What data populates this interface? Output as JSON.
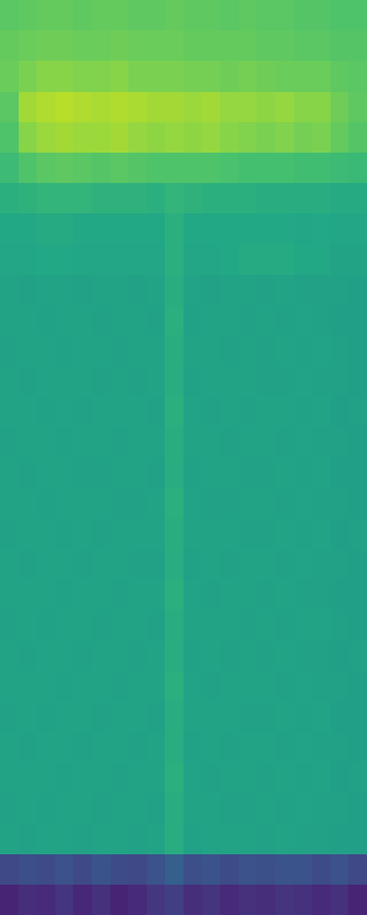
{
  "chart_data": {
    "type": "heatmap",
    "color": "viridis",
    "tick_labels": false,
    "color_range": [
      0,
      1
    ],
    "cells": [
      [
        0.74,
        0.75,
        0.76,
        0.76,
        0.75,
        0.76,
        0.76,
        0.75,
        0.75,
        0.76,
        0.75,
        0.75,
        0.74,
        0.75,
        0.74,
        0.74,
        0.73,
        0.73,
        0.72,
        0.72
      ],
      [
        0.76,
        0.77,
        0.78,
        0.78,
        0.77,
        0.77,
        0.78,
        0.77,
        0.77,
        0.77,
        0.76,
        0.76,
        0.76,
        0.76,
        0.75,
        0.75,
        0.74,
        0.74,
        0.73,
        0.73
      ],
      [
        0.77,
        0.8,
        0.82,
        0.82,
        0.81,
        0.81,
        0.82,
        0.8,
        0.8,
        0.8,
        0.79,
        0.79,
        0.78,
        0.79,
        0.78,
        0.77,
        0.77,
        0.77,
        0.75,
        0.74
      ],
      [
        0.74,
        0.86,
        0.88,
        0.89,
        0.88,
        0.87,
        0.88,
        0.87,
        0.86,
        0.86,
        0.85,
        0.86,
        0.84,
        0.84,
        0.83,
        0.84,
        0.82,
        0.82,
        0.78,
        0.75
      ],
      [
        0.72,
        0.82,
        0.85,
        0.86,
        0.85,
        0.85,
        0.86,
        0.84,
        0.83,
        0.84,
        0.83,
        0.84,
        0.82,
        0.81,
        0.8,
        0.81,
        0.79,
        0.8,
        0.76,
        0.73
      ],
      [
        0.68,
        0.72,
        0.74,
        0.75,
        0.74,
        0.73,
        0.74,
        0.73,
        0.72,
        0.72,
        0.72,
        0.72,
        0.71,
        0.7,
        0.7,
        0.7,
        0.69,
        0.69,
        0.68,
        0.67
      ],
      [
        0.63,
        0.64,
        0.65,
        0.65,
        0.65,
        0.64,
        0.64,
        0.64,
        0.63,
        0.65,
        0.64,
        0.63,
        0.63,
        0.63,
        0.62,
        0.62,
        0.62,
        0.62,
        0.61,
        0.61
      ],
      [
        0.6,
        0.6,
        0.61,
        0.61,
        0.6,
        0.6,
        0.6,
        0.6,
        0.6,
        0.63,
        0.6,
        0.6,
        0.6,
        0.6,
        0.6,
        0.6,
        0.59,
        0.6,
        0.59,
        0.59
      ],
      [
        0.59,
        0.59,
        0.6,
        0.6,
        0.59,
        0.59,
        0.59,
        0.59,
        0.59,
        0.63,
        0.59,
        0.59,
        0.6,
        0.61,
        0.61,
        0.61,
        0.6,
        0.6,
        0.58,
        0.58
      ],
      [
        0.58,
        0.57,
        0.58,
        0.58,
        0.57,
        0.58,
        0.58,
        0.57,
        0.58,
        0.62,
        0.58,
        0.57,
        0.58,
        0.58,
        0.57,
        0.58,
        0.57,
        0.57,
        0.57,
        0.56
      ],
      [
        0.58,
        0.58,
        0.57,
        0.58,
        0.58,
        0.57,
        0.58,
        0.58,
        0.57,
        0.63,
        0.57,
        0.58,
        0.58,
        0.57,
        0.58,
        0.57,
        0.58,
        0.57,
        0.56,
        0.56
      ],
      [
        0.57,
        0.58,
        0.58,
        0.57,
        0.58,
        0.58,
        0.57,
        0.58,
        0.58,
        0.62,
        0.58,
        0.58,
        0.57,
        0.58,
        0.57,
        0.58,
        0.57,
        0.58,
        0.57,
        0.56
      ],
      [
        0.58,
        0.57,
        0.58,
        0.58,
        0.58,
        0.57,
        0.58,
        0.57,
        0.58,
        0.62,
        0.57,
        0.58,
        0.58,
        0.58,
        0.57,
        0.57,
        0.58,
        0.57,
        0.57,
        0.56
      ],
      [
        0.58,
        0.58,
        0.57,
        0.58,
        0.57,
        0.58,
        0.58,
        0.58,
        0.57,
        0.63,
        0.58,
        0.57,
        0.58,
        0.57,
        0.58,
        0.58,
        0.57,
        0.58,
        0.56,
        0.57
      ],
      [
        0.57,
        0.58,
        0.58,
        0.57,
        0.58,
        0.58,
        0.57,
        0.58,
        0.58,
        0.62,
        0.58,
        0.58,
        0.57,
        0.58,
        0.58,
        0.57,
        0.58,
        0.57,
        0.57,
        0.56
      ],
      [
        0.58,
        0.57,
        0.58,
        0.58,
        0.57,
        0.57,
        0.58,
        0.58,
        0.57,
        0.62,
        0.57,
        0.58,
        0.58,
        0.57,
        0.57,
        0.58,
        0.57,
        0.58,
        0.56,
        0.56
      ],
      [
        0.58,
        0.58,
        0.57,
        0.58,
        0.58,
        0.58,
        0.57,
        0.57,
        0.58,
        0.63,
        0.58,
        0.57,
        0.57,
        0.58,
        0.58,
        0.57,
        0.58,
        0.57,
        0.57,
        0.56
      ],
      [
        0.57,
        0.58,
        0.58,
        0.57,
        0.58,
        0.57,
        0.58,
        0.58,
        0.58,
        0.62,
        0.58,
        0.58,
        0.58,
        0.57,
        0.57,
        0.58,
        0.57,
        0.58,
        0.56,
        0.57
      ],
      [
        0.58,
        0.57,
        0.58,
        0.58,
        0.57,
        0.58,
        0.58,
        0.57,
        0.57,
        0.62,
        0.57,
        0.58,
        0.57,
        0.58,
        0.58,
        0.57,
        0.58,
        0.57,
        0.57,
        0.56
      ],
      [
        0.58,
        0.58,
        0.58,
        0.57,
        0.58,
        0.58,
        0.57,
        0.58,
        0.58,
        0.63,
        0.58,
        0.57,
        0.58,
        0.58,
        0.57,
        0.58,
        0.57,
        0.57,
        0.56,
        0.56
      ],
      [
        0.57,
        0.58,
        0.57,
        0.58,
        0.58,
        0.57,
        0.58,
        0.58,
        0.57,
        0.62,
        0.58,
        0.58,
        0.58,
        0.57,
        0.58,
        0.57,
        0.58,
        0.58,
        0.57,
        0.56
      ],
      [
        0.58,
        0.57,
        0.58,
        0.58,
        0.57,
        0.58,
        0.58,
        0.57,
        0.58,
        0.62,
        0.57,
        0.58,
        0.57,
        0.58,
        0.57,
        0.58,
        0.57,
        0.57,
        0.56,
        0.57
      ],
      [
        0.58,
        0.58,
        0.58,
        0.57,
        0.58,
        0.58,
        0.57,
        0.58,
        0.58,
        0.63,
        0.58,
        0.57,
        0.58,
        0.58,
        0.58,
        0.57,
        0.58,
        0.57,
        0.57,
        0.56
      ],
      [
        0.57,
        0.58,
        0.57,
        0.58,
        0.58,
        0.57,
        0.58,
        0.58,
        0.57,
        0.62,
        0.58,
        0.58,
        0.58,
        0.57,
        0.57,
        0.58,
        0.57,
        0.58,
        0.56,
        0.56
      ],
      [
        0.58,
        0.57,
        0.58,
        0.58,
        0.57,
        0.58,
        0.58,
        0.57,
        0.58,
        0.62,
        0.57,
        0.58,
        0.57,
        0.58,
        0.58,
        0.57,
        0.58,
        0.57,
        0.57,
        0.56
      ],
      [
        0.58,
        0.58,
        0.58,
        0.57,
        0.58,
        0.58,
        0.57,
        0.58,
        0.58,
        0.63,
        0.58,
        0.57,
        0.58,
        0.58,
        0.57,
        0.58,
        0.57,
        0.58,
        0.56,
        0.57
      ],
      [
        0.57,
        0.58,
        0.57,
        0.58,
        0.58,
        0.57,
        0.58,
        0.58,
        0.57,
        0.62,
        0.58,
        0.58,
        0.57,
        0.57,
        0.58,
        0.57,
        0.58,
        0.57,
        0.57,
        0.56
      ],
      [
        0.58,
        0.57,
        0.58,
        0.58,
        0.57,
        0.58,
        0.58,
        0.57,
        0.58,
        0.62,
        0.57,
        0.58,
        0.58,
        0.58,
        0.57,
        0.58,
        0.57,
        0.57,
        0.56,
        0.56
      ],
      [
        0.22,
        0.24,
        0.23,
        0.25,
        0.22,
        0.26,
        0.23,
        0.22,
        0.25,
        0.3,
        0.24,
        0.26,
        0.23,
        0.25,
        0.24,
        0.26,
        0.25,
        0.23,
        0.25,
        0.22
      ],
      [
        0.1,
        0.13,
        0.12,
        0.15,
        0.11,
        0.14,
        0.1,
        0.12,
        0.16,
        0.18,
        0.13,
        0.15,
        0.12,
        0.14,
        0.13,
        0.15,
        0.14,
        0.12,
        0.14,
        0.1
      ]
    ]
  }
}
